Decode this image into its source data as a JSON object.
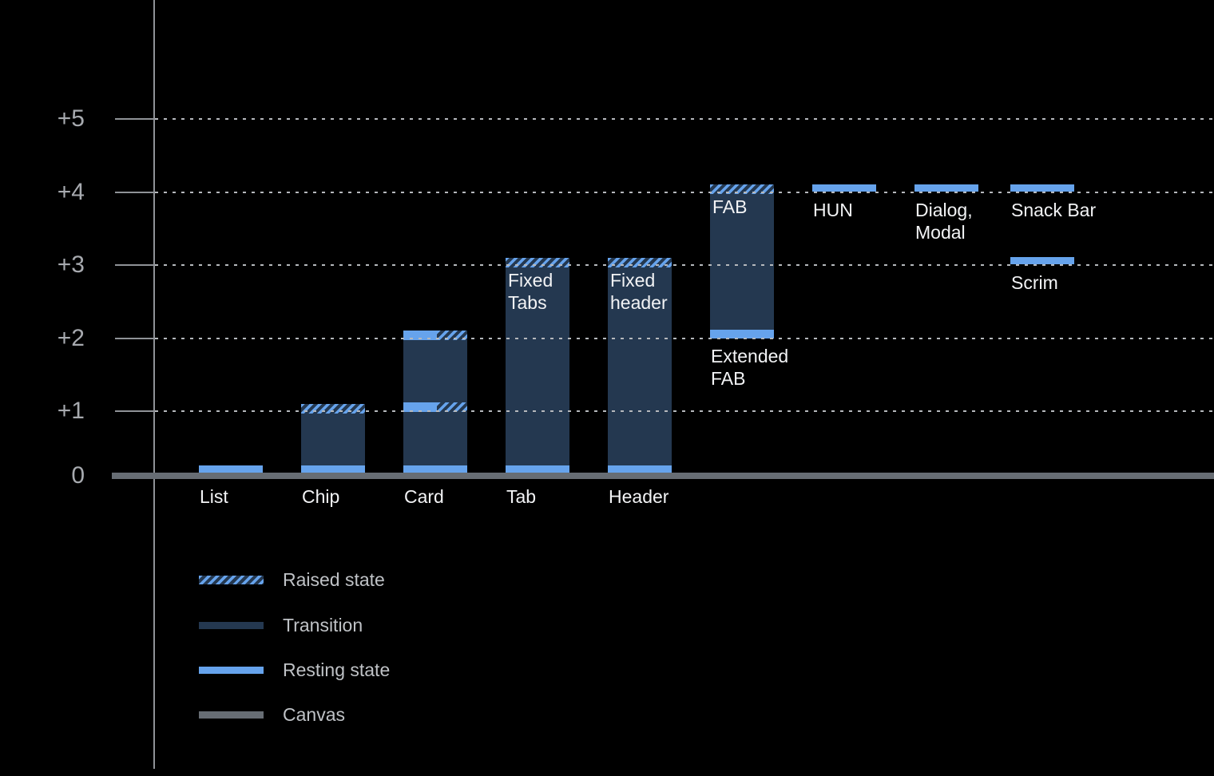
{
  "chart_data": {
    "type": "bar",
    "title": "",
    "description": "Elevation diagram of UI components with resting, raised and transition states above a canvas baseline",
    "y_axis": {
      "tick_labels": [
        "+5",
        "+4",
        "+3",
        "+2",
        "+1",
        "0"
      ],
      "tick_values": [
        5,
        4,
        3,
        2,
        1,
        0
      ],
      "ylim": [
        0,
        5.6
      ],
      "grid": "dotted-horizontal"
    },
    "legend": {
      "position": "bottom-left",
      "items": [
        {
          "label": "Raised state",
          "style": "raised"
        },
        {
          "label": "Transition",
          "style": "transition"
        },
        {
          "label": "Resting state",
          "style": "resting"
        },
        {
          "label": "Canvas",
          "style": "canvas"
        }
      ]
    },
    "colors": {
      "background": "#000000",
      "resting": "#66A3EC",
      "transition": "#243850",
      "raised_stripe": "#66A3EC",
      "canvas": "#676D74",
      "axis": "#8F9297",
      "gridline": "#B6B9BD",
      "axis_label": "#A7AAAF",
      "legend_label": "#BFC2C6",
      "bar_label": "#F2F3F5"
    },
    "bars": [
      {
        "id": "list",
        "slot": 0,
        "type": "floating",
        "level": 0,
        "axis_label": "List"
      },
      {
        "id": "chip",
        "slot": 1,
        "type": "stack",
        "from": 0,
        "to": 1.1,
        "resting_bottom": true,
        "top": "raised",
        "axis_label": "Chip",
        "resting_levels": [
          0
        ],
        "raised_levels": [
          1
        ]
      },
      {
        "id": "card",
        "slot": 2,
        "type": "stack",
        "from": 0,
        "to": 2.1,
        "resting_bottom": true,
        "top": "split",
        "mid_split_levels": [
          1
        ],
        "axis_label": "Card",
        "resting_levels": [
          0,
          1,
          2
        ],
        "raised_levels": [
          1,
          2
        ]
      },
      {
        "id": "tab",
        "slot": 3,
        "type": "stack",
        "from": 0,
        "to": 3.1,
        "resting_bottom": true,
        "top": "raised",
        "axis_label": "Tab",
        "inside_label_lines": [
          "Fixed",
          "Tabs"
        ],
        "resting_levels": [
          0
        ],
        "raised_levels": [
          3
        ]
      },
      {
        "id": "header",
        "slot": 4,
        "type": "stack",
        "from": 0,
        "to": 3.1,
        "resting_bottom": true,
        "top": "raised",
        "axis_label": "Header",
        "inside_label_lines": [
          "Fixed",
          "header"
        ],
        "resting_levels": [
          0
        ],
        "raised_levels": [
          3
        ]
      },
      {
        "id": "fab",
        "slot": 5,
        "type": "stack",
        "from": 2,
        "to": 4.1,
        "resting_at_from": true,
        "top": "raised",
        "inside_label_lines": [
          "FAB"
        ],
        "below_label": {
          "lines": [
            "Extended",
            "FAB"
          ],
          "level": 2
        },
        "resting_levels": [
          2
        ],
        "raised_levels": [
          4
        ]
      },
      {
        "id": "hun",
        "slot": 6,
        "type": "floating",
        "level": 4,
        "below_label": {
          "lines": [
            "HUN"
          ],
          "level": 4
        }
      },
      {
        "id": "dialog-modal",
        "slot": 7,
        "type": "floating",
        "level": 4,
        "below_label": {
          "lines": [
            "Dialog,",
            "Modal"
          ],
          "level": 4
        }
      },
      {
        "id": "snack-bar",
        "slot": 8,
        "type": "floating",
        "level": 4,
        "below_label": {
          "lines": [
            "Snack Bar"
          ],
          "level": 4
        }
      },
      {
        "id": "scrim",
        "slot": 8,
        "type": "floating",
        "level": 3,
        "below_label": {
          "lines": [
            "Scrim"
          ],
          "level": 3
        }
      }
    ]
  }
}
